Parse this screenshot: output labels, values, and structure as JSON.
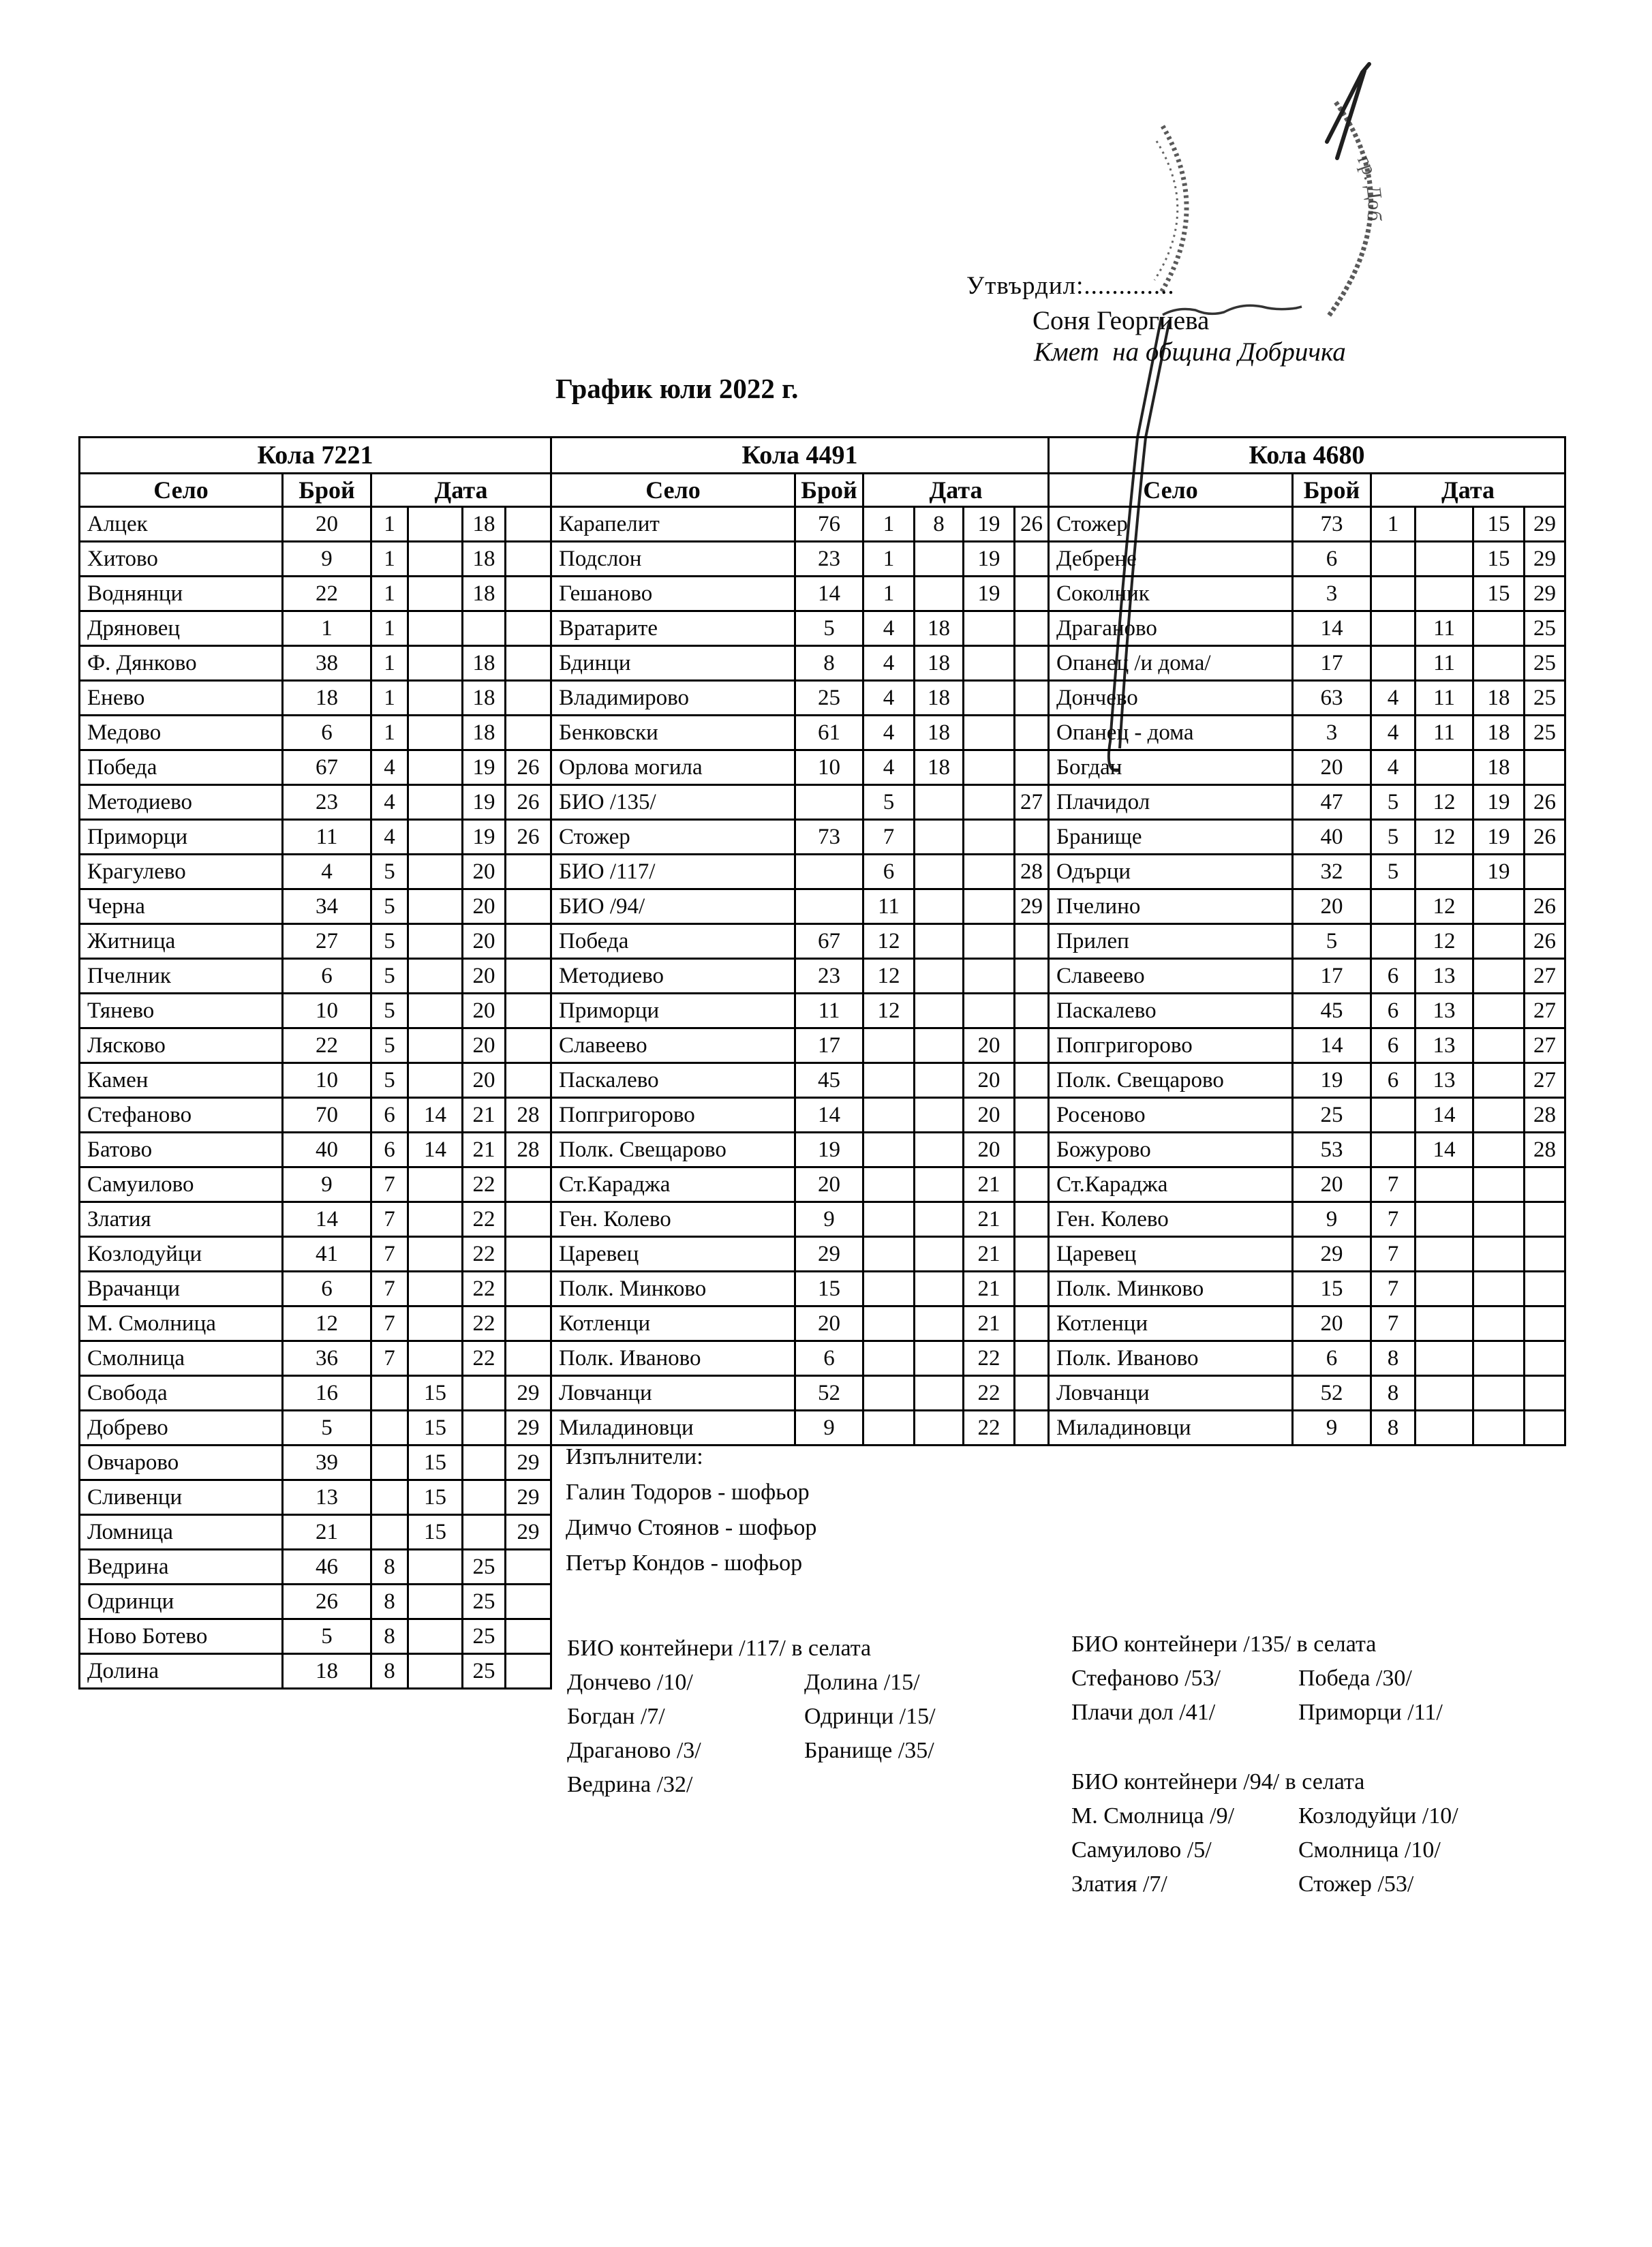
{
  "page": {
    "approved_label": "Утвърдил:.............",
    "approver_name": "Соня Георгиева",
    "approver_title": "Кмет  на община Добричка",
    "doc_title": "График юли 2022 г."
  },
  "columns": {
    "village": "Село",
    "count": "Брой",
    "date": "Дата"
  },
  "stamp_text": "гр. Доб",
  "tables": [
    {
      "car": "Кола 7221",
      "rows": [
        {
          "village": "Алцек",
          "count": "20",
          "dates": [
            "1",
            "",
            "18",
            ""
          ]
        },
        {
          "village": "Хитово",
          "count": "9",
          "dates": [
            "1",
            "",
            "18",
            ""
          ]
        },
        {
          "village": "Воднянци",
          "count": "22",
          "dates": [
            "1",
            "",
            "18",
            ""
          ]
        },
        {
          "village": "Дряновец",
          "count": "1",
          "dates": [
            "1",
            "",
            "",
            ""
          ]
        },
        {
          "village": "Ф. Дянково",
          "count": "38",
          "dates": [
            "1",
            "",
            "18",
            ""
          ]
        },
        {
          "village": "Енево",
          "count": "18",
          "dates": [
            "1",
            "",
            "18",
            ""
          ]
        },
        {
          "village": "Медово",
          "count": "6",
          "dates": [
            "1",
            "",
            "18",
            ""
          ]
        },
        {
          "village": "Победа",
          "count": "67",
          "dates": [
            "4",
            "",
            "19",
            "26"
          ]
        },
        {
          "village": "Методиево",
          "count": "23",
          "dates": [
            "4",
            "",
            "19",
            "26"
          ]
        },
        {
          "village": "Приморци",
          "count": "11",
          "dates": [
            "4",
            "",
            "19",
            "26"
          ]
        },
        {
          "village": "Крагулево",
          "count": "4",
          "dates": [
            "5",
            "",
            "20",
            ""
          ]
        },
        {
          "village": "Черна",
          "count": "34",
          "dates": [
            "5",
            "",
            "20",
            ""
          ]
        },
        {
          "village": "Житница",
          "count": "27",
          "dates": [
            "5",
            "",
            "20",
            ""
          ]
        },
        {
          "village": "Пчелник",
          "count": "6",
          "dates": [
            "5",
            "",
            "20",
            ""
          ]
        },
        {
          "village": "Тянево",
          "count": "10",
          "dates": [
            "5",
            "",
            "20",
            ""
          ]
        },
        {
          "village": "Лясково",
          "count": "22",
          "dates": [
            "5",
            "",
            "20",
            ""
          ]
        },
        {
          "village": "Камен",
          "count": "10",
          "dates": [
            "5",
            "",
            "20",
            ""
          ]
        },
        {
          "village": "Стефаново",
          "count": "70",
          "dates": [
            "6",
            "14",
            "21",
            "28"
          ]
        },
        {
          "village": "Батово",
          "count": "40",
          "dates": [
            "6",
            "14",
            "21",
            "28"
          ]
        },
        {
          "village": "Самуилово",
          "count": "9",
          "dates": [
            "7",
            "",
            "22",
            ""
          ]
        },
        {
          "village": "Златия",
          "count": "14",
          "dates": [
            "7",
            "",
            "22",
            ""
          ]
        },
        {
          "village": "Козлодуйци",
          "count": "41",
          "dates": [
            "7",
            "",
            "22",
            ""
          ]
        },
        {
          "village": "Врачанци",
          "count": "6",
          "dates": [
            "7",
            "",
            "22",
            ""
          ]
        },
        {
          "village": "М. Смолница",
          "count": "12",
          "dates": [
            "7",
            "",
            "22",
            ""
          ]
        },
        {
          "village": "Смолница",
          "count": "36",
          "dates": [
            "7",
            "",
            "22",
            ""
          ]
        },
        {
          "village": "Свобода",
          "count": "16",
          "dates": [
            "",
            "15",
            "",
            "29"
          ]
        },
        {
          "village": "Добрево",
          "count": "5",
          "dates": [
            "",
            "15",
            "",
            "29"
          ]
        },
        {
          "village": "Овчарово",
          "count": "39",
          "dates": [
            "",
            "15",
            "",
            "29"
          ]
        },
        {
          "village": "Сливенци",
          "count": "13",
          "dates": [
            "",
            "15",
            "",
            "29"
          ]
        },
        {
          "village": "Ломница",
          "count": "21",
          "dates": [
            "",
            "15",
            "",
            "29"
          ]
        },
        {
          "village": "Ведрина",
          "count": "46",
          "dates": [
            "8",
            "",
            "25",
            ""
          ]
        },
        {
          "village": "Одринци",
          "count": "26",
          "dates": [
            "8",
            "",
            "25",
            ""
          ]
        },
        {
          "village": "Ново Ботево",
          "count": "5",
          "dates": [
            "8",
            "",
            "25",
            ""
          ]
        },
        {
          "village": "Долина",
          "count": "18",
          "dates": [
            "8",
            "",
            "25",
            ""
          ]
        }
      ]
    },
    {
      "car": "Кола 4491",
      "rows": [
        {
          "village": "Карапелит",
          "count": "76",
          "dates": [
            "1",
            "8",
            "19",
            "26"
          ]
        },
        {
          "village": "Подслон",
          "count": "23",
          "dates": [
            "1",
            "",
            "19",
            ""
          ]
        },
        {
          "village": "Гешаново",
          "count": "14",
          "dates": [
            "1",
            "",
            "19",
            ""
          ]
        },
        {
          "village": "Вратарите",
          "count": "5",
          "dates": [
            "4",
            "18",
            "",
            ""
          ]
        },
        {
          "village": "Бдинци",
          "count": "8",
          "dates": [
            "4",
            "18",
            "",
            ""
          ]
        },
        {
          "village": "Владимирово",
          "count": "25",
          "dates": [
            "4",
            "18",
            "",
            ""
          ]
        },
        {
          "village": "Бенковски",
          "count": "61",
          "dates": [
            "4",
            "18",
            "",
            ""
          ]
        },
        {
          "village": "Орлова могила",
          "count": "10",
          "dates": [
            "4",
            "18",
            "",
            ""
          ]
        },
        {
          "village": "БИО /135/",
          "count": "",
          "dates": [
            "5",
            "",
            "",
            "27"
          ]
        },
        {
          "village": "Стожер",
          "count": "73",
          "dates": [
            "7",
            "",
            "",
            ""
          ]
        },
        {
          "village": "БИО /117/",
          "count": "",
          "dates": [
            "6",
            "",
            "",
            "28"
          ]
        },
        {
          "village": "БИО /94/",
          "count": "",
          "dates": [
            "11",
            "",
            "",
            "29"
          ]
        },
        {
          "village": "Победа",
          "count": "67",
          "dates": [
            "12",
            "",
            "",
            ""
          ]
        },
        {
          "village": "Методиево",
          "count": "23",
          "dates": [
            "12",
            "",
            "",
            ""
          ]
        },
        {
          "village": "Приморци",
          "count": "11",
          "dates": [
            "12",
            "",
            "",
            ""
          ]
        },
        {
          "village": "Славеево",
          "count": "17",
          "dates": [
            "",
            "",
            "20",
            ""
          ]
        },
        {
          "village": "Паскалево",
          "count": "45",
          "dates": [
            "",
            "",
            "20",
            ""
          ]
        },
        {
          "village": "Попгригорово",
          "count": "14",
          "dates": [
            "",
            "",
            "20",
            ""
          ]
        },
        {
          "village": "Полк. Свещарово",
          "count": "19",
          "dates": [
            "",
            "",
            "20",
            ""
          ]
        },
        {
          "village": "Ст.Караджа",
          "count": "20",
          "dates": [
            "",
            "",
            "21",
            ""
          ]
        },
        {
          "village": "Ген. Колево",
          "count": "9",
          "dates": [
            "",
            "",
            "21",
            ""
          ]
        },
        {
          "village": "Царевец",
          "count": "29",
          "dates": [
            "",
            "",
            "21",
            ""
          ]
        },
        {
          "village": "Полк. Минково",
          "count": "15",
          "dates": [
            "",
            "",
            "21",
            ""
          ]
        },
        {
          "village": "Котленци",
          "count": "20",
          "dates": [
            "",
            "",
            "21",
            ""
          ]
        },
        {
          "village": "Полк. Иваново",
          "count": "6",
          "dates": [
            "",
            "",
            "22",
            ""
          ]
        },
        {
          "village": "Ловчанци",
          "count": "52",
          "dates": [
            "",
            "",
            "22",
            ""
          ]
        },
        {
          "village": "Миладиновци",
          "count": "9",
          "dates": [
            "",
            "",
            "22",
            ""
          ]
        }
      ]
    },
    {
      "car": "Кола 4680",
      "rows": [
        {
          "village": "Стожер",
          "count": "73",
          "dates": [
            "1",
            "",
            "15",
            "29"
          ]
        },
        {
          "village": "Дебрене",
          "count": "6",
          "dates": [
            "",
            "",
            "15",
            "29"
          ]
        },
        {
          "village": "Соколник",
          "count": "3",
          "dates": [
            "",
            "",
            "15",
            "29"
          ]
        },
        {
          "village": "Драганово",
          "count": "14",
          "dates": [
            "",
            "11",
            "",
            "25"
          ]
        },
        {
          "village": "Опанец /и дома/",
          "count": "17",
          "dates": [
            "",
            "11",
            "",
            "25"
          ]
        },
        {
          "village": "Дончево",
          "count": "63",
          "dates": [
            "4",
            "11",
            "18",
            "25"
          ]
        },
        {
          "village": "Опанец - дома",
          "count": "3",
          "dates": [
            "4",
            "11",
            "18",
            "25"
          ]
        },
        {
          "village": "Богдан",
          "count": "20",
          "dates": [
            "4",
            "",
            "18",
            ""
          ]
        },
        {
          "village": "Плачидол",
          "count": "47",
          "dates": [
            "5",
            "12",
            "19",
            "26"
          ]
        },
        {
          "village": "Бранище",
          "count": "40",
          "dates": [
            "5",
            "12",
            "19",
            "26"
          ]
        },
        {
          "village": "Одърци",
          "count": "32",
          "dates": [
            "5",
            "",
            "19",
            ""
          ]
        },
        {
          "village": "Пчелино",
          "count": "20",
          "dates": [
            "",
            "12",
            "",
            "26"
          ]
        },
        {
          "village": "Прилеп",
          "count": "5",
          "dates": [
            "",
            "12",
            "",
            "26"
          ]
        },
        {
          "village": "Славеево",
          "count": "17",
          "dates": [
            "6",
            "13",
            "",
            "27"
          ]
        },
        {
          "village": "Паскалево",
          "count": "45",
          "dates": [
            "6",
            "13",
            "",
            "27"
          ]
        },
        {
          "village": "Попгригорово",
          "count": "14",
          "dates": [
            "6",
            "13",
            "",
            "27"
          ]
        },
        {
          "village": "Полк. Свещарово",
          "count": "19",
          "dates": [
            "6",
            "13",
            "",
            "27"
          ]
        },
        {
          "village": "Росеново",
          "count": "25",
          "dates": [
            "",
            "14",
            "",
            "28"
          ]
        },
        {
          "village": "Божурово",
          "count": "53",
          "dates": [
            "",
            "14",
            "",
            "28"
          ]
        },
        {
          "village": "Ст.Караджа",
          "count": "20",
          "dates": [
            "7",
            "",
            "",
            ""
          ]
        },
        {
          "village": "Ген. Колево",
          "count": "9",
          "dates": [
            "7",
            "",
            "",
            ""
          ]
        },
        {
          "village": "Царевец",
          "count": "29",
          "dates": [
            "7",
            "",
            "",
            ""
          ]
        },
        {
          "village": "Полк. Минково",
          "count": "15",
          "dates": [
            "7",
            "",
            "",
            ""
          ]
        },
        {
          "village": "Котленци",
          "count": "20",
          "dates": [
            "7",
            "",
            "",
            ""
          ]
        },
        {
          "village": "Полк. Иваново",
          "count": "6",
          "dates": [
            "8",
            "",
            "",
            ""
          ]
        },
        {
          "village": "Ловчанци",
          "count": "52",
          "dates": [
            "8",
            "",
            "",
            ""
          ]
        },
        {
          "village": "Миладиновци",
          "count": "9",
          "dates": [
            "8",
            "",
            "",
            ""
          ]
        }
      ]
    }
  ],
  "executors": {
    "title": "Изпълнители:",
    "items": [
      "Галин Тодоров - шофьор",
      "Димчо Стоянов - шофьор",
      "Петър Кондов - шофьор"
    ]
  },
  "bio_notes": [
    {
      "title": "БИО контейнери /117/ в селата",
      "left": [
        "Дончево /10/",
        "Богдан /7/",
        "Драганово /3/",
        "Ведрина /32/"
      ],
      "right": [
        "Долина /15/",
        "Одринци /15/",
        "Бранище /35/"
      ]
    },
    {
      "title": "БИО контейнери /135/ в селата",
      "left": [
        "Стефаново /53/",
        "Плачи дол /41/"
      ],
      "right": [
        "Победа /30/",
        "Приморци /11/"
      ]
    },
    {
      "title": "БИО контейнери /94/ в селата",
      "left": [
        "М. Смолница /9/",
        "Самуилово /5/",
        "Златия /7/"
      ],
      "right": [
        "Козлодуйци /10/",
        "Смолница /10/",
        "Стожер /53/"
      ]
    }
  ]
}
